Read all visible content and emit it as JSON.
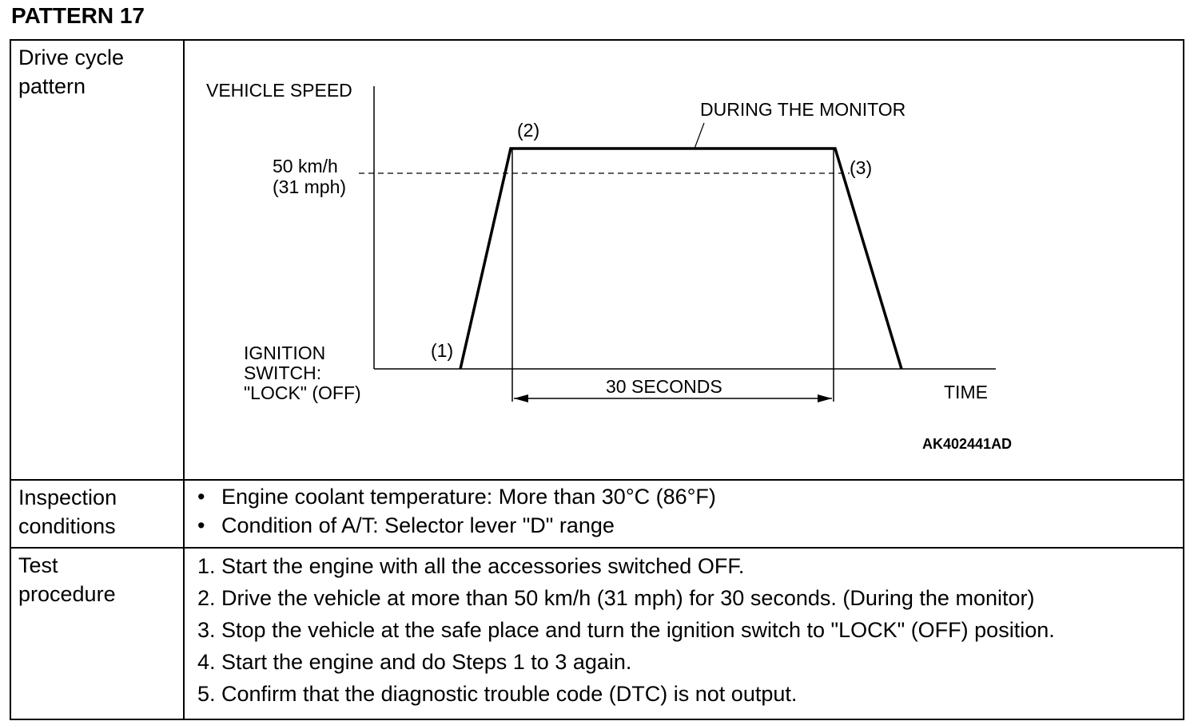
{
  "title": "PATTERN 17",
  "rows": {
    "drive_cycle_label": "Drive cycle\npattern",
    "inspection_label": "Inspection\nconditions",
    "test_label": "Test\nprocedure"
  },
  "diagram": {
    "y_axis_label": "VEHICLE SPEED",
    "x_axis_label": "TIME",
    "speed_line1": "50 km/h",
    "speed_line2": "(31 mph)",
    "ignition_line1": "IGNITION",
    "ignition_line2": "SWITCH:",
    "ignition_line3": "\"LOCK\" (OFF)",
    "point1": "(1)",
    "point2": "(2)",
    "point3": "(3)",
    "monitor_label": "DURING THE MONITOR",
    "duration_label": "30 SECONDS",
    "figure_code": "AK402441AD"
  },
  "inspection_conditions": [
    "Engine coolant temperature: More than 30°C (86°F)",
    "Condition of A/T: Selector lever \"D\" range"
  ],
  "test_procedure": [
    "1. Start the engine with all the accessories switched OFF.",
    "2. Drive the vehicle at more than 50 km/h (31 mph) for 30 seconds. (During the monitor)",
    "3. Stop the vehicle at the safe place and turn the ignition switch to \"LOCK\" (OFF) position.",
    "4. Start the engine and do Steps 1 to 3 again.",
    "5. Confirm that the diagnostic trouble code (DTC) is not output."
  ]
}
